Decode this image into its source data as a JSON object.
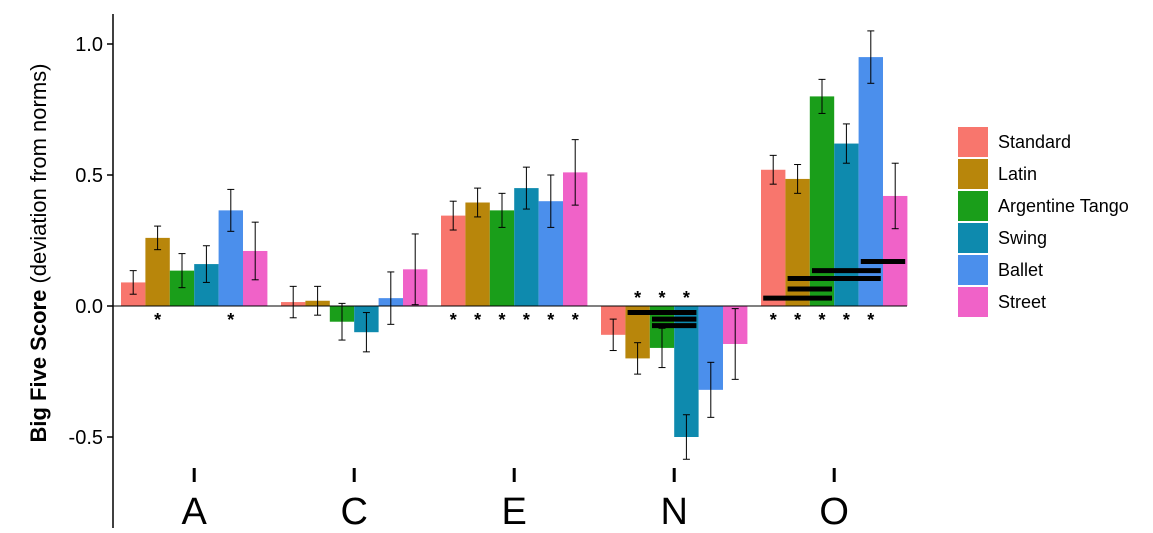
{
  "chart_data": {
    "type": "bar",
    "ylabel_bold": "Big Five Score",
    "ylabel_rest": " (deviation from norms)",
    "xlabel": "",
    "title": "",
    "categories": [
      "A",
      "C",
      "E",
      "N",
      "O"
    ],
    "yticks": [
      {
        "value": 1.0,
        "label": "1.0"
      },
      {
        "value": 0.5,
        "label": "0.5"
      },
      {
        "value": 0.0,
        "label": "0.0"
      },
      {
        "value": -0.5,
        "label": "-0.5"
      }
    ],
    "ylim": [
      -0.82,
      1.1
    ],
    "legend_position": "right",
    "grid": false,
    "series": [
      {
        "name": "Standard",
        "color": "#f8766d",
        "values": [
          0.09,
          0.015,
          0.345,
          -0.11,
          0.52
        ],
        "errors": [
          0.045,
          0.06,
          0.055,
          0.06,
          0.055
        ]
      },
      {
        "name": "Latin",
        "color": "#b8860b",
        "values": [
          0.26,
          0.02,
          0.395,
          -0.2,
          0.485
        ],
        "errors": [
          0.045,
          0.055,
          0.055,
          0.06,
          0.055
        ]
      },
      {
        "name": "Argentine Tango",
        "color": "#1a9e1a",
        "values": [
          0.135,
          -0.06,
          0.365,
          -0.16,
          0.8
        ],
        "errors": [
          0.065,
          0.07,
          0.065,
          0.075,
          0.065
        ]
      },
      {
        "name": "Swing",
        "color": "#0e8aae",
        "values": [
          0.16,
          -0.1,
          0.45,
          -0.5,
          0.62
        ],
        "errors": [
          0.07,
          0.075,
          0.08,
          0.085,
          0.075
        ]
      },
      {
        "name": "Ballet",
        "color": "#4b8fec",
        "values": [
          0.365,
          0.03,
          0.4,
          -0.32,
          0.95
        ],
        "errors": [
          0.08,
          0.1,
          0.1,
          0.105,
          0.1
        ]
      },
      {
        "name": "Street",
        "color": "#f062c8",
        "values": [
          0.21,
          0.14,
          0.51,
          -0.145,
          0.42
        ],
        "errors": [
          0.11,
          0.135,
          0.125,
          0.135,
          0.125
        ]
      }
    ],
    "significance_marker": "*",
    "significance": [
      {
        "category": "A",
        "series": [
          "Latin",
          "Ballet"
        ]
      },
      {
        "category": "E",
        "series": [
          "Standard",
          "Latin",
          "Argentine Tango",
          "Swing",
          "Ballet",
          "Street"
        ]
      },
      {
        "category": "N",
        "series": [
          "Latin",
          "Argentine Tango",
          "Swing"
        ]
      },
      {
        "category": "O",
        "series": [
          "Standard",
          "Latin",
          "Argentine Tango",
          "Swing",
          "Ballet"
        ]
      }
    ],
    "comparison_brackets": [
      {
        "category": "N",
        "from": "Latin",
        "to": "Swing",
        "value": -0.025
      },
      {
        "category": "N",
        "from": "Argentine Tango",
        "to": "Swing",
        "value": -0.05
      },
      {
        "category": "N",
        "from": "Argentine Tango",
        "to": "Swing",
        "value": -0.075
      },
      {
        "category": "O",
        "from": "Argentine Tango",
        "to": "Ballet",
        "value": 0.135
      },
      {
        "category": "O",
        "from": "Latin",
        "to": "Ballet",
        "value": 0.105
      },
      {
        "category": "O",
        "from": "Latin",
        "to": "Argentine Tango",
        "value": 0.065
      },
      {
        "category": "O",
        "from": "Standard",
        "to": "Argentine Tango",
        "value": 0.03
      },
      {
        "category": "O",
        "from": "Ballet",
        "to": "Street",
        "value": 0.17
      }
    ]
  }
}
